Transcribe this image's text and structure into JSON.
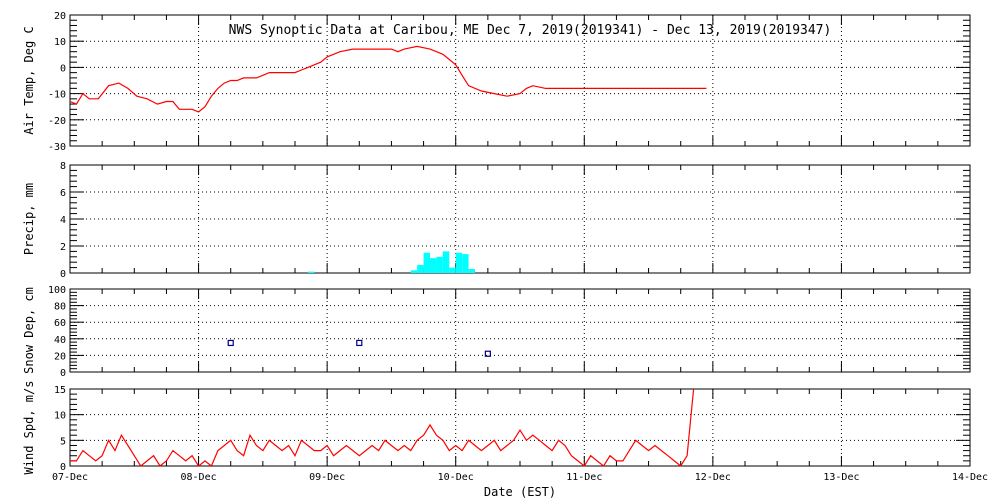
{
  "chart_data": {
    "type": "line",
    "title": "NWS Synoptic Data at Caribou, ME   Dec  7, 2019(2019341) - Dec 13, 2019(2019347)",
    "xlabel": "Date (EST)",
    "x_ticks": [
      "07-Dec",
      "08-Dec",
      "09-Dec",
      "10-Dec",
      "11-Dec",
      "12-Dec",
      "13-Dec",
      "14-Dec"
    ],
    "xlim_days": [
      0,
      7
    ],
    "grid": true,
    "panels": [
      {
        "id": "air-temp",
        "type": "line",
        "ylabel": "Air Temp, Deg C",
        "ylim": [
          -30,
          20
        ],
        "yticks": [
          "20",
          "10",
          "0",
          "-10",
          "-20",
          "-30"
        ],
        "color": "#ff0000",
        "series": [
          {
            "x_days": [
              0.0,
              0.05,
              0.1,
              0.15,
              0.22,
              0.3,
              0.38,
              0.45,
              0.52,
              0.6,
              0.68,
              0.75,
              0.8,
              0.85,
              0.9,
              0.95,
              1.0,
              1.05,
              1.1,
              1.15,
              1.2,
              1.25,
              1.3,
              1.35,
              1.4,
              1.45,
              1.5,
              1.55,
              1.6,
              1.65,
              1.7,
              1.75,
              1.8,
              1.85,
              1.9,
              1.95,
              2.0,
              2.1,
              2.2,
              2.3,
              2.4,
              2.5,
              2.55,
              2.6,
              2.7,
              2.8,
              2.9,
              2.95,
              3.0,
              3.05,
              3.1,
              3.2,
              3.3,
              3.4,
              3.5,
              3.55,
              3.6,
              3.7,
              3.75,
              3.8,
              3.85,
              3.9,
              3.95,
              4.0,
              4.05,
              4.1,
              4.15,
              4.2,
              4.3,
              4.4,
              4.5,
              4.55,
              4.6,
              4.65,
              4.7,
              4.8,
              4.9,
              4.95
            ],
            "values": [
              -13,
              -14,
              -10,
              -12,
              -12,
              -7,
              -6,
              -8,
              -11,
              -12,
              -14,
              -13,
              -13,
              -16,
              -16,
              -16,
              -17,
              -15,
              -11,
              -8,
              -6,
              -5,
              -5,
              -4,
              -4,
              -4,
              -3,
              -2,
              -2,
              -2,
              -2,
              -2,
              -1,
              0,
              1,
              2,
              4,
              6,
              7,
              7,
              7,
              7,
              6,
              7,
              8,
              7,
              5,
              3,
              1,
              -3,
              -7,
              -9,
              -10,
              -11,
              -10,
              -8,
              -7,
              -8,
              -8,
              -8,
              -8,
              -8,
              -8,
              -8,
              -8,
              -8,
              -8,
              -8,
              -8,
              -8,
              -8,
              -8,
              -8,
              -8,
              -8,
              -8,
              -8,
              -8
            ]
          }
        ]
      },
      {
        "id": "precip",
        "type": "bar",
        "ylabel": "Precip, mm",
        "ylim": [
          0,
          8
        ],
        "yticks": [
          "8",
          "6",
          "4",
          "2",
          "0"
        ],
        "color": "#00ffff",
        "series": [
          {
            "x_days": [
              1.85,
              2.65,
              2.7,
              2.75,
              2.8,
              2.85,
              2.9,
              2.95,
              3.0,
              3.05,
              3.1
            ],
            "values": [
              0.1,
              0.2,
              0.6,
              1.5,
              1.1,
              1.2,
              1.6,
              0.4,
              1.5,
              1.4,
              0.3
            ]
          }
        ]
      },
      {
        "id": "snow-depth",
        "type": "scatter",
        "ylabel": "Snow Dep, cm",
        "ylim": [
          0,
          100
        ],
        "yticks": [
          "100",
          "80",
          "60",
          "40",
          "20",
          "0"
        ],
        "color": "#000080",
        "series": [
          {
            "x_days": [
              1.25,
              2.25,
              3.25
            ],
            "values": [
              35,
              35,
              22
            ]
          }
        ]
      },
      {
        "id": "wind-speed",
        "type": "line",
        "ylabel": "Wind Spd, m/s",
        "ylim": [
          0,
          15
        ],
        "yticks": [
          "15",
          "10",
          "5",
          "0"
        ],
        "color": "#ff0000",
        "series": [
          {
            "x_days": [
              0.0,
              0.05,
              0.1,
              0.15,
              0.2,
              0.25,
              0.3,
              0.35,
              0.4,
              0.45,
              0.5,
              0.55,
              0.6,
              0.65,
              0.7,
              0.75,
              0.8,
              0.85,
              0.9,
              0.95,
              1.0,
              1.05,
              1.1,
              1.15,
              1.2,
              1.25,
              1.3,
              1.35,
              1.4,
              1.45,
              1.5,
              1.55,
              1.6,
              1.65,
              1.7,
              1.75,
              1.8,
              1.85,
              1.9,
              1.95,
              2.0,
              2.05,
              2.1,
              2.15,
              2.2,
              2.25,
              2.3,
              2.35,
              2.4,
              2.45,
              2.5,
              2.55,
              2.6,
              2.65,
              2.7,
              2.75,
              2.8,
              2.85,
              2.9,
              2.95,
              3.0,
              3.05,
              3.1,
              3.15,
              3.2,
              3.25,
              3.3,
              3.35,
              3.4,
              3.45,
              3.5,
              3.55,
              3.6,
              3.65,
              3.7,
              3.75,
              3.8,
              3.85,
              3.9,
              3.95,
              4.0,
              4.05,
              4.1,
              4.15,
              4.2,
              4.25,
              4.3,
              4.35,
              4.4,
              4.45,
              4.5,
              4.55,
              4.6,
              4.65,
              4.7,
              4.75,
              4.8,
              4.85
            ],
            "values": [
              1,
              1,
              3,
              2,
              1,
              2,
              5,
              3,
              6,
              4,
              2,
              0,
              1,
              2,
              0,
              1,
              3,
              2,
              1,
              2,
              0,
              1,
              0,
              3,
              4,
              5,
              3,
              2,
              6,
              4,
              3,
              5,
              4,
              3,
              4,
              2,
              5,
              4,
              3,
              3,
              4,
              2,
              3,
              4,
              3,
              2,
              3,
              4,
              3,
              5,
              4,
              3,
              4,
              3,
              5,
              6,
              8,
              6,
              5,
              3,
              4,
              3,
              5,
              4,
              3,
              4,
              5,
              3,
              4,
              5,
              7,
              5,
              6,
              5,
              4,
              3,
              5,
              4,
              2,
              1,
              0,
              2,
              1,
              0,
              2,
              1,
              1,
              3,
              5,
              4,
              3,
              4,
              3,
              2,
              1,
              0,
              2,
              15
            ]
          }
        ]
      }
    ]
  }
}
